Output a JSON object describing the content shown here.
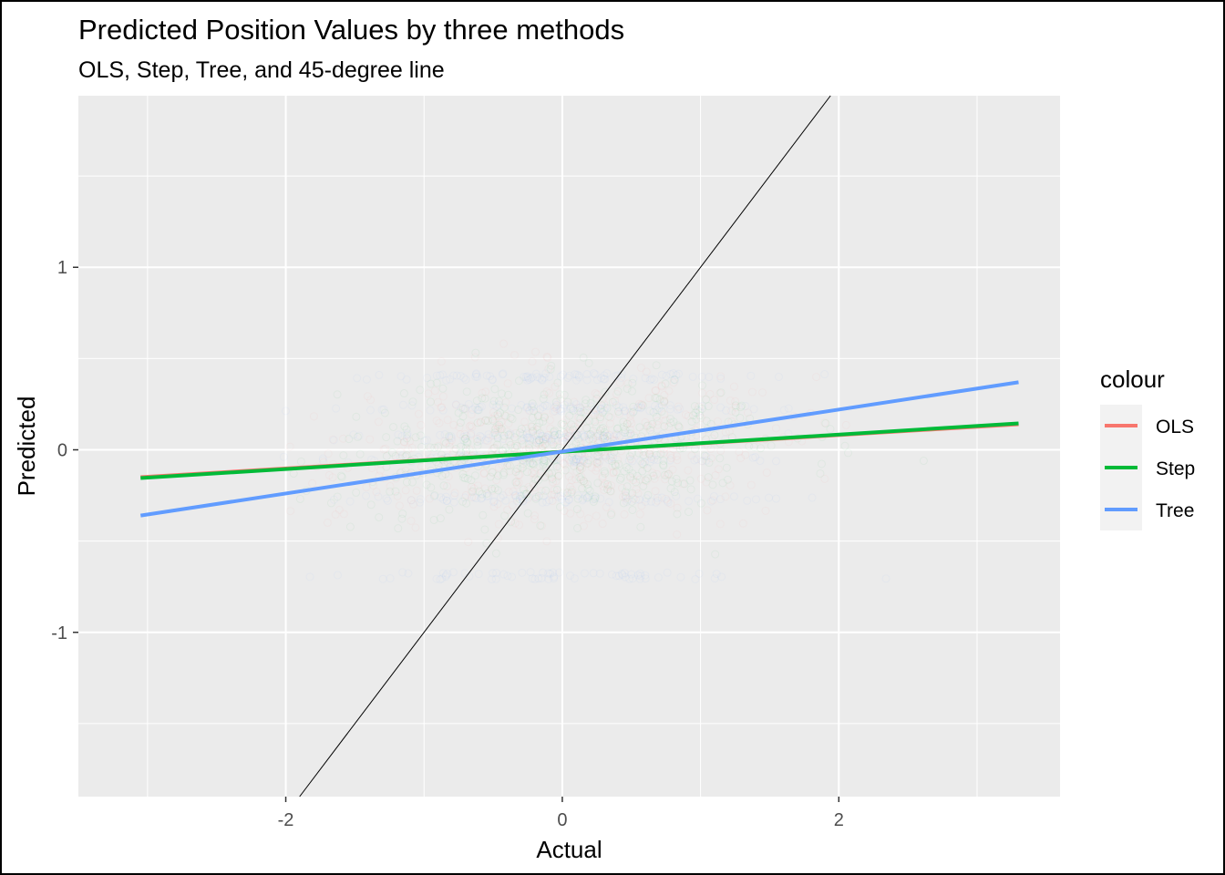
{
  "chart_data": {
    "type": "scatter",
    "title": "Predicted Position Values by three methods",
    "subtitle": "OLS, Step, Tree, and 45-degree line",
    "xlabel": "Actual",
    "ylabel": "Predicted",
    "xlim": [
      -3.5,
      3.6
    ],
    "ylim": [
      -1.9,
      1.94
    ],
    "x_ticks": [
      -2,
      0,
      2
    ],
    "x_tick_labels": [
      "-2",
      "0",
      "2"
    ],
    "y_ticks": [
      -1,
      0,
      1
    ],
    "y_tick_labels": [
      "-1",
      "0",
      "1"
    ],
    "grid": true,
    "background": "#ebebeb",
    "legend": {
      "title": "colour",
      "placement": "right",
      "entries": [
        {
          "label": "OLS",
          "color": "#f8766d"
        },
        {
          "label": "Step",
          "color": "#00ba38"
        },
        {
          "label": "Tree",
          "color": "#619cff"
        }
      ]
    },
    "series": [
      {
        "name": "OLS",
        "kind": "fit-line",
        "color": "#f8766d",
        "x": [
          -3.05,
          3.3
        ],
        "y": [
          -0.15,
          0.14
        ]
      },
      {
        "name": "Step",
        "kind": "fit-line",
        "color": "#00ba38",
        "x": [
          -3.05,
          3.3
        ],
        "y": [
          -0.155,
          0.145
        ]
      },
      {
        "name": "Tree",
        "kind": "fit-line",
        "color": "#619cff",
        "x": [
          -3.05,
          3.3
        ],
        "y": [
          -0.36,
          0.37
        ]
      }
    ],
    "reference_line": {
      "label": "45-degree line",
      "slope": 1,
      "intercept": 0,
      "color": "#000000"
    },
    "scatter_points": {
      "description_only": false,
      "color_by_series": [
        "#f8766d",
        "#00ba38",
        "#619cff"
      ],
      "x_range": [
        -3.1,
        3.3
      ],
      "y_range": [
        -1.7,
        1.1
      ],
      "alpha": 0.05
    }
  }
}
